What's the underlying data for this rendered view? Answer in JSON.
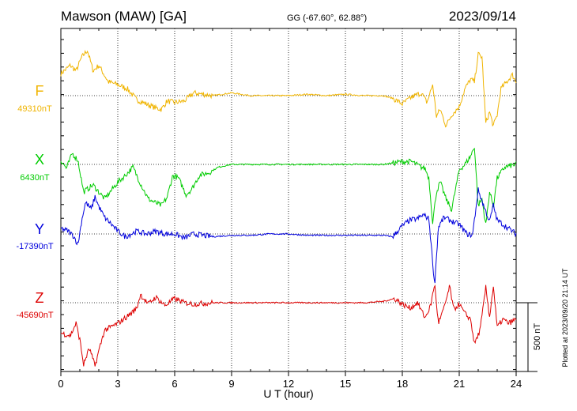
{
  "chart_data": {
    "type": "line",
    "title": "Mawson (MAW)  [GA]",
    "subtitle": "GG (-67.60°,  62.88°)",
    "date": "2023/09/14",
    "xlabel": "U T (hour)",
    "xlim": [
      0,
      24
    ],
    "x_ticks": [
      "0",
      "3",
      "6",
      "9",
      "12",
      "15",
      "18",
      "21",
      "24"
    ],
    "x_ticks_values": [
      0,
      3,
      6,
      9,
      12,
      15,
      18,
      21,
      24
    ],
    "grid": true,
    "scale_label": "500 nT",
    "scale_nT": 500,
    "baselines_nT": {
      "F": 49310,
      "X": 6430,
      "Y": -17390,
      "Z": -45690
    },
    "plotted_at": "Plotted at 2023/09/20 21:14 UT",
    "series": [
      {
        "name": "F",
        "baseline_label": "49310nT",
        "color": "#f0b400",
        "offset_nT": [
          [
            0,
            160
          ],
          [
            0.5,
            220
          ],
          [
            0.8,
            180
          ],
          [
            1.1,
            280
          ],
          [
            1.4,
            330
          ],
          [
            1.7,
            180
          ],
          [
            2.0,
            220
          ],
          [
            2.5,
            100
          ],
          [
            3,
            80
          ],
          [
            3.5,
            50
          ],
          [
            4,
            -30
          ],
          [
            4.5,
            -60
          ],
          [
            5,
            -90
          ],
          [
            5.3,
            -100
          ],
          [
            5.6,
            -40
          ],
          [
            6,
            -50
          ],
          [
            6.5,
            -40
          ],
          [
            7,
            20
          ],
          [
            8,
            0
          ],
          [
            9,
            20
          ],
          [
            10,
            0
          ],
          [
            11,
            0
          ],
          [
            12,
            0
          ],
          [
            13,
            10
          ],
          [
            14,
            0
          ],
          [
            15,
            10
          ],
          [
            16,
            0
          ],
          [
            17,
            0
          ],
          [
            17.5,
            -20
          ],
          [
            18,
            -60
          ],
          [
            18.5,
            -10
          ],
          [
            19,
            20
          ],
          [
            19.3,
            -50
          ],
          [
            19.6,
            80
          ],
          [
            19.8,
            -150
          ],
          [
            20,
            -100
          ],
          [
            20.3,
            -220
          ],
          [
            20.6,
            -140
          ],
          [
            21,
            -80
          ],
          [
            21.3,
            50
          ],
          [
            21.6,
            120
          ],
          [
            21.8,
            100
          ],
          [
            22,
            300
          ],
          [
            22.2,
            280
          ],
          [
            22.4,
            -200
          ],
          [
            22.6,
            -120
          ],
          [
            22.8,
            -220
          ],
          [
            23,
            -140
          ],
          [
            23.2,
            50
          ],
          [
            23.5,
            100
          ],
          [
            23.8,
            150
          ],
          [
            24,
            100
          ]
        ]
      },
      {
        "name": "X",
        "baseline_label": "6430nT",
        "color": "#00cc00",
        "offset_nT": [
          [
            0,
            30
          ],
          [
            0.3,
            -30
          ],
          [
            0.6,
            80
          ],
          [
            0.9,
            30
          ],
          [
            1.2,
            -200
          ],
          [
            1.4,
            -180
          ],
          [
            1.7,
            -150
          ],
          [
            2.0,
            -200
          ],
          [
            2.3,
            -250
          ],
          [
            2.6,
            -200
          ],
          [
            3,
            -130
          ],
          [
            3.4,
            -80
          ],
          [
            3.8,
            -20
          ],
          [
            4.2,
            -140
          ],
          [
            4.6,
            -250
          ],
          [
            5.0,
            -280
          ],
          [
            5.3,
            -300
          ],
          [
            5.6,
            -240
          ],
          [
            5.9,
            -80
          ],
          [
            6.2,
            -100
          ],
          [
            6.6,
            -220
          ],
          [
            6.9,
            -180
          ],
          [
            7.3,
            -80
          ],
          [
            7.8,
            -60
          ],
          [
            8.3,
            -20
          ],
          [
            9,
            0
          ],
          [
            10,
            0
          ],
          [
            11,
            0
          ],
          [
            12,
            0
          ],
          [
            13,
            0
          ],
          [
            14,
            0
          ],
          [
            15,
            0
          ],
          [
            16,
            0
          ],
          [
            17,
            0
          ],
          [
            17.5,
            10
          ],
          [
            18,
            20
          ],
          [
            18.5,
            20
          ],
          [
            19,
            -20
          ],
          [
            19.2,
            -30
          ],
          [
            19.4,
            -100
          ],
          [
            19.6,
            -420
          ],
          [
            19.8,
            -200
          ],
          [
            20,
            -130
          ],
          [
            20.3,
            -250
          ],
          [
            20.6,
            -330
          ],
          [
            21,
            -40
          ],
          [
            21.3,
            0
          ],
          [
            21.6,
            60
          ],
          [
            21.8,
            130
          ],
          [
            22,
            -300
          ],
          [
            22.2,
            -250
          ],
          [
            22.4,
            -440
          ],
          [
            22.6,
            -200
          ],
          [
            22.8,
            -300
          ],
          [
            23,
            -100
          ],
          [
            23.4,
            -20
          ],
          [
            24,
            0
          ]
        ]
      },
      {
        "name": "Y",
        "baseline_label": "-17390nT",
        "color": "#0000dd",
        "offset_nT": [
          [
            0,
            40
          ],
          [
            0.4,
            20
          ],
          [
            0.7,
            -20
          ],
          [
            0.9,
            -80
          ],
          [
            1.1,
            100
          ],
          [
            1.3,
            230
          ],
          [
            1.6,
            180
          ],
          [
            1.8,
            270
          ],
          [
            2.0,
            200
          ],
          [
            2.3,
            120
          ],
          [
            2.6,
            80
          ],
          [
            3,
            20
          ],
          [
            3.4,
            -20
          ],
          [
            4,
            20
          ],
          [
            4.5,
            0
          ],
          [
            5,
            20
          ],
          [
            5.5,
            0
          ],
          [
            6,
            0
          ],
          [
            6.5,
            -30
          ],
          [
            7,
            0
          ],
          [
            8,
            -20
          ],
          [
            9,
            -10
          ],
          [
            10,
            -10
          ],
          [
            11,
            0
          ],
          [
            12,
            0
          ],
          [
            13,
            -10
          ],
          [
            14,
            -10
          ],
          [
            15,
            -10
          ],
          [
            16,
            -10
          ],
          [
            17,
            -10
          ],
          [
            17.5,
            -20
          ],
          [
            18,
            60
          ],
          [
            18.4,
            100
          ],
          [
            18.8,
            110
          ],
          [
            19.1,
            140
          ],
          [
            19.4,
            110
          ],
          [
            19.6,
            -200
          ],
          [
            19.7,
            -380
          ],
          [
            19.9,
            50
          ],
          [
            20.2,
            120
          ],
          [
            20.5,
            100
          ],
          [
            20.8,
            80
          ],
          [
            21,
            70
          ],
          [
            21.4,
            0
          ],
          [
            21.7,
            -10
          ],
          [
            22,
            320
          ],
          [
            22.3,
            200
          ],
          [
            22.6,
            90
          ],
          [
            22.8,
            210
          ],
          [
            23,
            100
          ],
          [
            23.4,
            60
          ],
          [
            23.8,
            20
          ],
          [
            24,
            0
          ]
        ]
      },
      {
        "name": "Z",
        "baseline_label": "-45690nT",
        "color": "#dd0000",
        "offset_nT": [
          [
            0,
            -220
          ],
          [
            0.5,
            -240
          ],
          [
            0.8,
            -150
          ],
          [
            1.0,
            -270
          ],
          [
            1.2,
            -450
          ],
          [
            1.5,
            -330
          ],
          [
            1.8,
            -460
          ],
          [
            2.0,
            -350
          ],
          [
            2.3,
            -200
          ],
          [
            2.6,
            -180
          ],
          [
            3,
            -150
          ],
          [
            3.5,
            -100
          ],
          [
            4,
            -40
          ],
          [
            4.2,
            60
          ],
          [
            4.6,
            -10
          ],
          [
            5,
            40
          ],
          [
            5.5,
            -20
          ],
          [
            6,
            30
          ],
          [
            6.5,
            0
          ],
          [
            7,
            -10
          ],
          [
            8,
            0
          ],
          [
            9,
            0
          ],
          [
            10,
            0
          ],
          [
            11,
            0
          ],
          [
            12,
            0
          ],
          [
            13,
            0
          ],
          [
            14,
            0
          ],
          [
            15,
            0
          ],
          [
            16,
            0
          ],
          [
            17,
            10
          ],
          [
            17.6,
            30
          ],
          [
            18,
            -10
          ],
          [
            18.4,
            -40
          ],
          [
            18.8,
            0
          ],
          [
            19.2,
            -110
          ],
          [
            19.5,
            -20
          ],
          [
            19.7,
            140
          ],
          [
            19.9,
            -150
          ],
          [
            20.2,
            -40
          ],
          [
            20.5,
            120
          ],
          [
            20.7,
            -50
          ],
          [
            21,
            -10
          ],
          [
            21.3,
            -80
          ],
          [
            21.6,
            -120
          ],
          [
            21.8,
            -300
          ],
          [
            22.1,
            -200
          ],
          [
            22.4,
            110
          ],
          [
            22.6,
            -100
          ],
          [
            22.8,
            120
          ],
          [
            23,
            -180
          ],
          [
            23.3,
            -120
          ],
          [
            23.6,
            -150
          ],
          [
            24,
            -120
          ]
        ]
      }
    ]
  }
}
